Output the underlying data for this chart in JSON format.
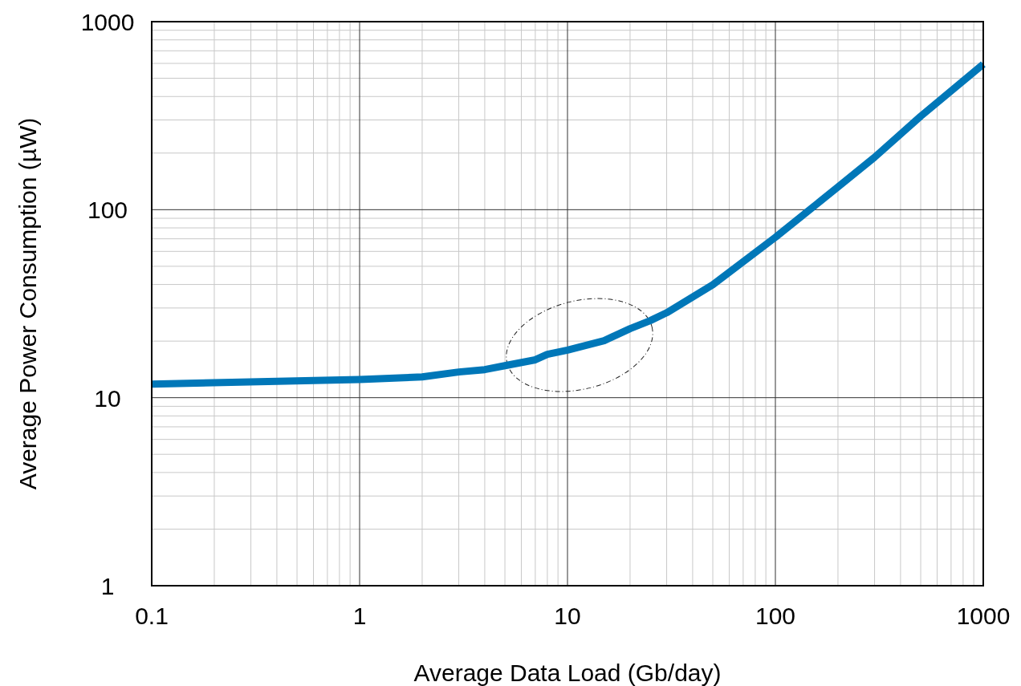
{
  "chart_data": {
    "type": "line",
    "xlabel": "Average Data Load (Gb/day)",
    "ylabel": "Average Power Consumption (µW)",
    "log": "xy",
    "grid": true,
    "marker": "none",
    "line_style": "solid",
    "xlim": [
      0.1,
      1000
    ],
    "ylim": [
      1,
      1000
    ],
    "xticks": [
      0.1,
      1,
      10,
      100,
      1000
    ],
    "yticks": [
      1,
      10,
      100,
      1000
    ],
    "x": [
      0.1,
      1,
      2,
      3,
      4,
      5,
      7,
      8,
      10,
      15,
      20,
      25,
      30,
      50,
      100,
      200,
      300,
      500,
      1000
    ],
    "series": [
      {
        "color": "#0077b8",
        "values": [
          11.8,
          12.5,
          12.9,
          13.7,
          14.1,
          14.8,
          15.9,
          17.0,
          17.9,
          20.1,
          23.3,
          25.7,
          28.3,
          39.9,
          71.3,
          132,
          190,
          314,
          594
        ]
      }
    ]
  }
}
